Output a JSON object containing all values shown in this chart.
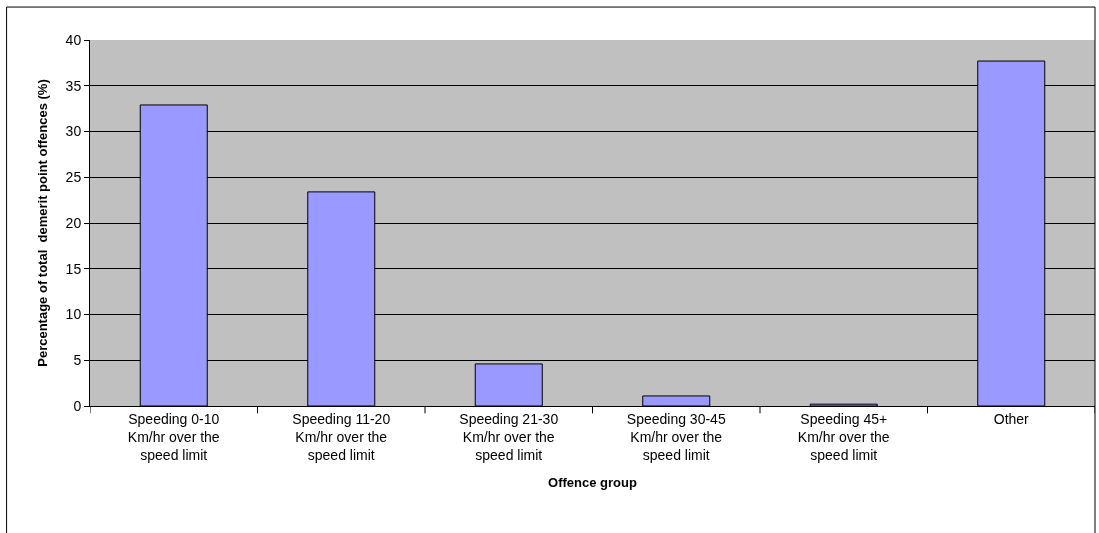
{
  "chart_data": {
    "type": "bar",
    "xlabel": "Offence group",
    "ylabel": "Percentage of total  demerit point offences (%)",
    "categories": [
      "Speeding 0-10 Km/hr over the speed limit",
      "Speeding 11-20 Km/hr over the speed limit",
      "Speeding 21-30 Km/hr over the speed limit",
      "Speeding 30-45 Km/hr over the speed limit",
      "Speeding 45+ Km/hr over the speed limit",
      "Other"
    ],
    "values": [
      32.9,
      23.4,
      4.6,
      1.1,
      0.2,
      37.7
    ],
    "color": "#9999ff",
    "ylim": [
      0,
      40
    ],
    "yticks": [
      0,
      5,
      10,
      15,
      20,
      25,
      30,
      35,
      40
    ],
    "grid": "y"
  }
}
